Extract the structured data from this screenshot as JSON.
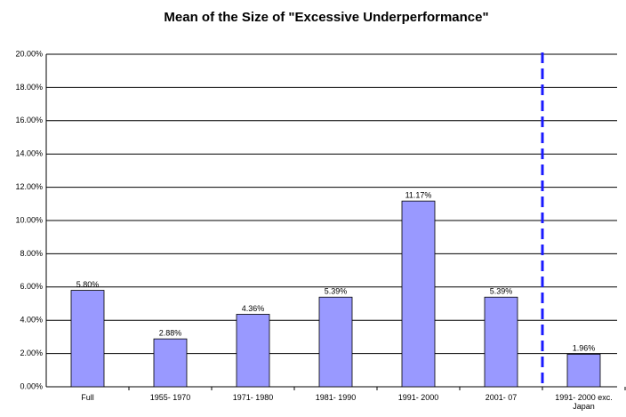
{
  "chart_data": {
    "type": "bar",
    "title": "Mean of the Size of \"Excessive Underperformance\"",
    "categories": [
      "Full",
      "1955- 1970",
      "1971- 1980",
      "1981- 1990",
      "1991- 2000",
      "2001- 07",
      "1991- 2000 exc. Japan"
    ],
    "values": [
      5.8,
      2.88,
      4.36,
      5.39,
      11.17,
      5.39,
      1.96
    ],
    "value_labels": [
      "5.80%",
      "2.88%",
      "4.36%",
      "5.39%",
      "11.17%",
      "5.39%",
      "1.96%"
    ],
    "color": "#9999ff",
    "ylim": [
      0,
      20
    ],
    "yticks": [
      {
        "value": 0,
        "label": "0.00%"
      },
      {
        "value": 2,
        "label": "2.00%"
      },
      {
        "value": 4,
        "label": "4.00%"
      },
      {
        "value": 6,
        "label": "6.00%"
      },
      {
        "value": 8,
        "label": "8.00%"
      },
      {
        "value": 10,
        "label": "10.00%"
      },
      {
        "value": 12,
        "label": "12.00%"
      },
      {
        "value": 14,
        "label": "14.00%"
      },
      {
        "value": 16,
        "label": "16.00%"
      },
      {
        "value": 18,
        "label": "18.00%"
      },
      {
        "value": 20,
        "label": "20.00%"
      }
    ],
    "grid": true
  }
}
